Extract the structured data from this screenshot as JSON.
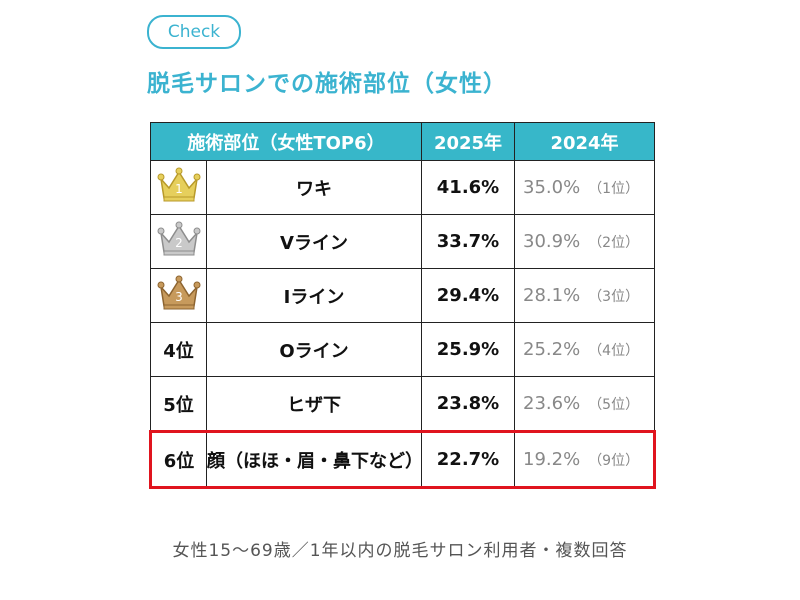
{
  "badge": "Check",
  "title": "脱毛サロンでの施術部位（女性）",
  "table": {
    "header": [
      "施術部位（女性TOP6）",
      "2025年",
      "2024年"
    ],
    "rows": [
      {
        "rank": "1",
        "item": "ワキ",
        "y2025": "41.6%",
        "y2024": "35.0%",
        "rank2024": "（1位）"
      },
      {
        "rank": "2",
        "item": "Vライン",
        "y2025": "33.7%",
        "y2024": "30.9%",
        "rank2024": "（2位）"
      },
      {
        "rank": "3",
        "item": "Iライン",
        "y2025": "29.4%",
        "y2024": "28.1%",
        "rank2024": "（3位）"
      },
      {
        "rank": "4位",
        "item": "Oライン",
        "y2025": "25.9%",
        "y2024": "25.2%",
        "rank2024": "（4位）"
      },
      {
        "rank": "5位",
        "item": "ヒザ下",
        "y2025": "23.8%",
        "y2024": "23.6%",
        "rank2024": "（5位）"
      },
      {
        "rank": "6位",
        "item": "顔（ほほ・眉・鼻下など）",
        "y2025": "22.7%",
        "y2024": "19.2%",
        "rank2024": "（9位）"
      }
    ]
  },
  "note": "女性15〜69歳／1年以内の脱毛サロン利用者・複数回答"
}
